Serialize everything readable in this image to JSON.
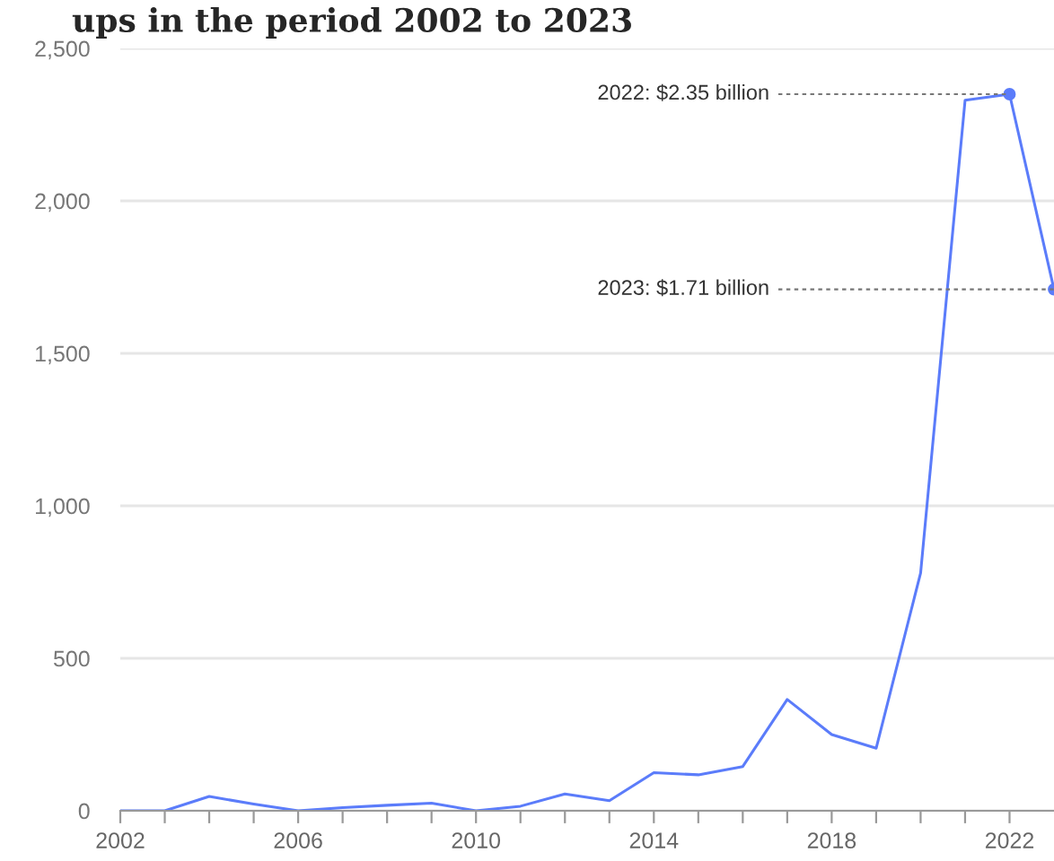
{
  "chart_data": {
    "type": "line",
    "title": "ups in the period 2002 to 2023",
    "x": [
      2002,
      2003,
      2004,
      2005,
      2006,
      2007,
      2008,
      2009,
      2010,
      2011,
      2012,
      2013,
      2014,
      2015,
      2016,
      2017,
      2018,
      2019,
      2020,
      2021,
      2022,
      2023
    ],
    "series": [
      {
        "color": "#5b7cfa",
        "values": [
          0,
          0,
          47,
          22,
          0,
          10,
          18,
          25,
          0,
          15,
          55,
          33,
          125,
          118,
          145,
          365,
          250,
          205,
          780,
          2330,
          2350,
          1710
        ]
      }
    ],
    "xlim": [
      2002,
      2023
    ],
    "xticks": [
      2002,
      {
        "value": 2003,
        "label": null
      },
      {
        "value": 2004,
        "label": null
      },
      {
        "value": 2005,
        "label": null
      },
      2006,
      {
        "value": 2007,
        "label": null
      },
      {
        "value": 2008,
        "label": null
      },
      {
        "value": 2009,
        "label": null
      },
      2010,
      {
        "value": 2011,
        "label": null
      },
      {
        "value": 2012,
        "label": null
      },
      {
        "value": 2013,
        "label": null
      },
      2014,
      {
        "value": 2015,
        "label": null
      },
      {
        "value": 2016,
        "label": null
      },
      {
        "value": 2017,
        "label": null
      },
      2018,
      {
        "value": 2019,
        "label": null
      },
      {
        "value": 2020,
        "label": null
      },
      {
        "value": 2021,
        "label": null
      },
      2022
    ],
    "ylim": [
      0,
      2500
    ],
    "yticks": [
      0,
      {
        "value": 500,
        "label": "500"
      },
      {
        "value": 1000,
        "label": "1,000"
      },
      {
        "value": 1500,
        "label": "1,500"
      },
      {
        "value": 2000,
        "label": "2,000"
      },
      {
        "value": 2500,
        "label": "2,500"
      }
    ],
    "grid": "y",
    "marker": "none",
    "line_style": "solid",
    "legend": false,
    "annotations": [
      {
        "text": "2022: $2.35 billion",
        "x": 2022,
        "y": 2350
      },
      {
        "text": "2023: $1.71 billion",
        "x": 2023,
        "y": 1710
      }
    ]
  }
}
